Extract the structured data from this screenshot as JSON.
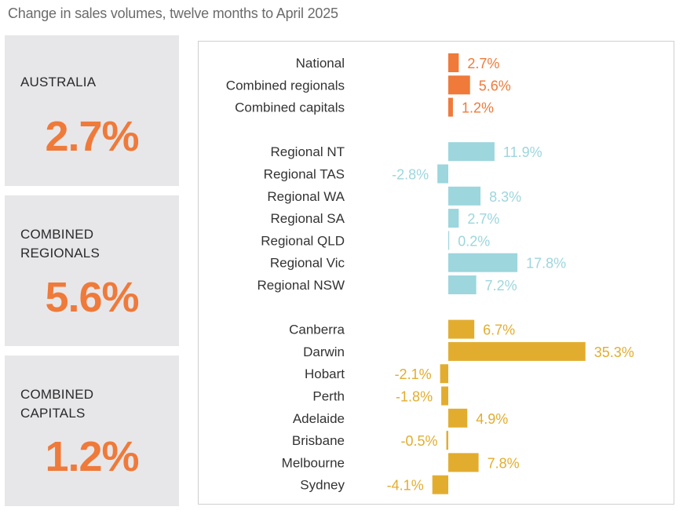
{
  "title": "Change in sales volumes, twelve months to April 2025",
  "cards": [
    {
      "label_lines": [
        "AUSTRALIA"
      ],
      "value": "2.7%"
    },
    {
      "label_lines": [
        "COMBINED",
        "REGIONALS"
      ],
      "value": "5.6%"
    },
    {
      "label_lines": [
        "COMBINED",
        "CAPITALS"
      ],
      "value": "1.2%"
    }
  ],
  "colors": {
    "summary": "#ef7a3a",
    "regional": "#9dd6dd",
    "capital": "#e2ad2f",
    "card_bg": "#e7e7ea",
    "card_value": "#ef7a3a"
  },
  "chart_data": {
    "type": "bar",
    "orientation": "horizontal",
    "groups": [
      {
        "name": "summary",
        "color": "#ef7a3a",
        "categories": [
          "National",
          "Combined regionals",
          "Combined capitals"
        ],
        "values": [
          2.7,
          5.6,
          1.2
        ],
        "labels": [
          "2.7%",
          "5.6%",
          "1.2%"
        ]
      },
      {
        "name": "regional",
        "color": "#9dd6dd",
        "categories": [
          "Regional NT",
          "Regional TAS",
          "Regional WA",
          "Regional SA",
          "Regional QLD",
          "Regional Vic",
          "Regional NSW"
        ],
        "values": [
          11.9,
          -2.8,
          8.3,
          2.7,
          0.2,
          17.8,
          7.2
        ],
        "labels": [
          "11.9%",
          "-2.8%",
          "8.3%",
          "2.7%",
          "0.2%",
          "17.8%",
          "7.2%"
        ]
      },
      {
        "name": "capital",
        "color": "#e2ad2f",
        "categories": [
          "Canberra",
          "Darwin",
          "Hobart",
          "Perth",
          "Adelaide",
          "Brisbane",
          "Melbourne",
          "Sydney"
        ],
        "values": [
          6.7,
          35.3,
          -2.1,
          -1.8,
          4.9,
          -0.5,
          7.8,
          -4.1
        ],
        "labels": [
          "6.7%",
          "35.3%",
          "-2.1%",
          "-1.8%",
          "4.9%",
          "-0.5%",
          "7.8%",
          "-4.1%"
        ]
      }
    ]
  }
}
